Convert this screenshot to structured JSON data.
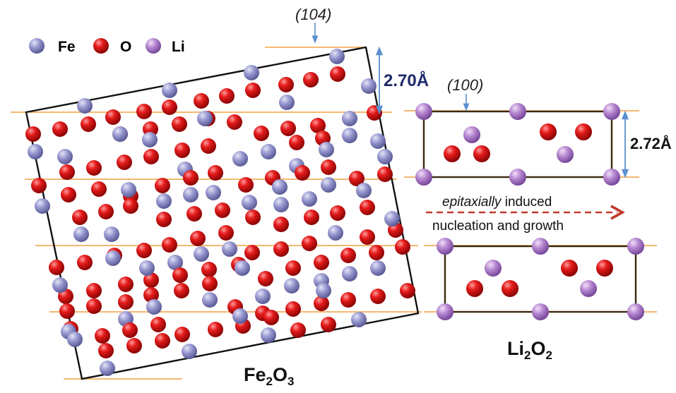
{
  "legend": {
    "items": [
      {
        "element": "Fe",
        "color": "#8f8fc8"
      },
      {
        "element": "O",
        "color": "#e01414"
      },
      {
        "element": "Li",
        "color": "#b07ccc"
      }
    ]
  },
  "labels": {
    "plane_fe2o3": "(104)",
    "plane_li2o2": "(100)",
    "spacing_fe2o3": "2.70Å",
    "spacing_li2o2": "2.72Å",
    "epitaxy_em": "epitaxially",
    "epitaxy_rest": " induced",
    "epitaxy_line2": "nucleation and growth",
    "fe2o3": {
      "base1": "Fe",
      "sub1": "2",
      "base2": "O",
      "sub2": "3"
    },
    "li2o2": {
      "base1": "Li",
      "sub1": "2",
      "base2": "O",
      "sub2": "2"
    }
  },
  "colors": {
    "fe": "#8f8fc8",
    "o": "#e01414",
    "li": "#b07ccc",
    "plane_line": "#f0a040",
    "arrow": "#5b8fd0",
    "dashed_arrow": "#c0392b",
    "spacing_text": "#1f2a6b"
  }
}
